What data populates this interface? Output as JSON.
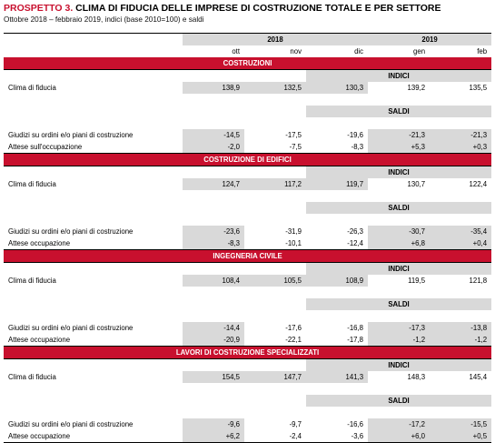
{
  "title_lead": "PROSPETTO 3.",
  "title_rest": " CLIMA DI FIDUCIA DELLE IMPRESE DI COSTRUZIONE TOTALE E PER SETTORE",
  "subtitle": "Ottobre 2018 – febbraio 2019, indici (base 2010=100) e saldi",
  "years": [
    {
      "label": "2018",
      "span": 3
    },
    {
      "label": "2019",
      "span": 2
    }
  ],
  "months": [
    "ott",
    "nov",
    "dic",
    "gen",
    "feb"
  ],
  "sections": [
    {
      "name": "COSTRUZIONI",
      "indici_label": "INDICI",
      "saldi_label": "SALDI",
      "indici": [
        {
          "label": "Clima di fiducia",
          "values": [
            "138,9",
            "132,5",
            "130,3",
            "139,2",
            "135,5"
          ]
        }
      ],
      "saldi": [
        {
          "label": "Giudizi su ordini e/o piani di costruzione",
          "values": [
            "-14,5",
            "-17,5",
            "-19,6",
            "-21,3",
            "-21,3"
          ]
        },
        {
          "label": "Attese sull'occupazione",
          "values": [
            "-2,0",
            "-7,5",
            "-8,3",
            "+5,3",
            "+0,3"
          ]
        }
      ]
    },
    {
      "name": "COSTRUZIONE DI EDIFICI",
      "indici_label": "INDICI",
      "saldi_label": "SALDI",
      "indici": [
        {
          "label": "Clima di fiducia",
          "values": [
            "124,7",
            "117,2",
            "119,7",
            "130,7",
            "122,4"
          ]
        }
      ],
      "saldi": [
        {
          "label": "Giudizi su ordini e/o piani di costruzione",
          "values": [
            "-23,6",
            "-31,9",
            "-26,3",
            "-30,7",
            "-35,4"
          ]
        },
        {
          "label": "Attese occupazione",
          "values": [
            "-8,3",
            "-10,1",
            "-12,4",
            "+6,8",
            "+0,4"
          ]
        }
      ]
    },
    {
      "name": "INGEGNERIA CIVILE",
      "indici_label": "INDICI",
      "saldi_label": "SALDI",
      "indici": [
        {
          "label": "Clima di fiducia",
          "values": [
            "108,4",
            "105,5",
            "108,9",
            "119,5",
            "121,8"
          ]
        }
      ],
      "saldi": [
        {
          "label": "Giudizi su ordini e/o piani di costruzione",
          "values": [
            "-14,4",
            "-17,6",
            "-16,8",
            "-17,3",
            "-13,8"
          ]
        },
        {
          "label": "Attese occupazione",
          "values": [
            "-20,9",
            "-22,1",
            "-17,8",
            "-1,2",
            "-1,2"
          ]
        }
      ]
    },
    {
      "name": "LAVORI DI COSTRUZIONE SPECIALIZZATI",
      "indici_label": "INDICI",
      "saldi_label": "SALDI",
      "indici": [
        {
          "label": "Clima di fiducia",
          "values": [
            "154,5",
            "147,7",
            "141,3",
            "148,3",
            "145,4"
          ]
        }
      ],
      "saldi": [
        {
          "label": "Giudizi su ordini e/o piani di costruzione",
          "values": [
            "-9,6",
            "-9,7",
            "-16,6",
            "-17,2",
            "-15,5"
          ]
        },
        {
          "label": "Attese occupazione",
          "values": [
            "+6,2",
            "-2,4",
            "-3,6",
            "+6,0",
            "+0,5"
          ]
        }
      ]
    }
  ]
}
